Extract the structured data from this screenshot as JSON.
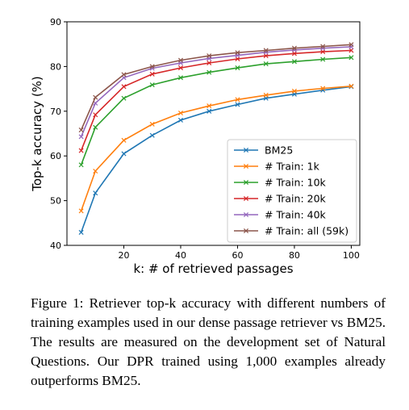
{
  "chart_data": {
    "type": "line",
    "xlabel": "k: # of retrieved passages",
    "ylabel": "Top-k accuracy (%)",
    "xlim": [
      0,
      103
    ],
    "ylim": [
      40,
      90
    ],
    "xticks": [
      20,
      40,
      60,
      80,
      100
    ],
    "yticks": [
      40,
      50,
      60,
      70,
      80,
      90
    ],
    "grid": false,
    "legend_position": "lower-right",
    "marker": "x",
    "x": [
      5,
      10,
      20,
      30,
      40,
      50,
      60,
      70,
      80,
      90,
      100
    ],
    "series": [
      {
        "name": "BM25",
        "color": "#1f77b4",
        "values": [
          42.9,
          51.7,
          60.5,
          64.6,
          68.0,
          70.0,
          71.5,
          72.9,
          73.8,
          74.7,
          75.5
        ]
      },
      {
        "name": "# Train: 1k",
        "color": "#ff7f0e",
        "values": [
          47.7,
          56.6,
          63.5,
          67.1,
          69.6,
          71.2,
          72.6,
          73.6,
          74.5,
          75.1,
          75.6
        ]
      },
      {
        "name": "# Train: 10k",
        "color": "#2ca02c",
        "values": [
          58.0,
          66.4,
          72.9,
          75.9,
          77.5,
          78.7,
          79.7,
          80.6,
          81.1,
          81.6,
          82.0
        ]
      },
      {
        "name": "# Train: 20k",
        "color": "#d62728",
        "values": [
          61.2,
          69.2,
          75.5,
          78.3,
          79.7,
          80.8,
          81.7,
          82.4,
          82.9,
          83.3,
          83.6
        ]
      },
      {
        "name": "# Train: 40k",
        "color": "#9467bd",
        "values": [
          64.3,
          71.8,
          77.5,
          79.6,
          80.8,
          81.8,
          82.5,
          83.2,
          83.7,
          84.1,
          84.4
        ]
      },
      {
        "name": "# Train: all (59k)",
        "color": "#8c564b",
        "values": [
          65.8,
          73.1,
          78.2,
          80.0,
          81.4,
          82.4,
          83.1,
          83.6,
          84.1,
          84.5,
          84.9
        ]
      }
    ]
  },
  "caption": "Figure 1: Retriever top-k accuracy with different numbers of training examples used in our dense passage retriever vs BM25. The results are measured on the development set of Natural Questions. Our DPR trained using 1,000 examples already outperforms BM25."
}
